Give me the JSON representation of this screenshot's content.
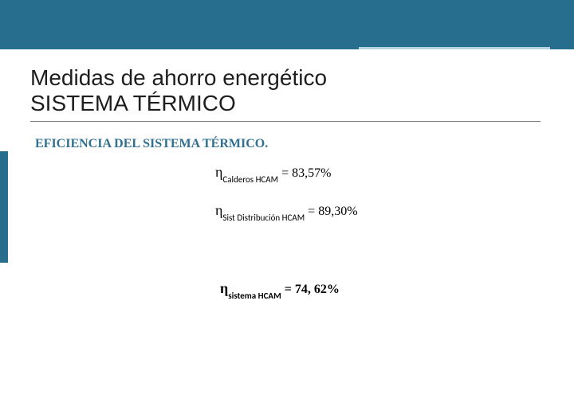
{
  "header": {
    "band_color": "#276e8e",
    "accent_color": "#b6d2de"
  },
  "title": {
    "line1": "Medidas de ahorro energético",
    "line2": "SISTEMA TÉRMICO"
  },
  "subheading": "EFICIENCIA DEL SISTEMA TÉRMICO.",
  "equations": {
    "eq1": {
      "symbol": "η",
      "subscript": "Calderos HCAM",
      "value": "83,57%",
      "bold": false
    },
    "eq2": {
      "symbol": "η",
      "subscript": "Sist Distribución HCAM",
      "value": "89,30%",
      "bold": false
    },
    "eq3": {
      "symbol": "η",
      "subscript": "sistema HCAM",
      "value": "74, 62%",
      "bold": true
    }
  },
  "styling": {
    "title_fontsize": 28,
    "subheading_color": "#31708f",
    "subheading_fontsize": 16,
    "eq_eta_fontsize": 18,
    "eq_sub_fontsize": 11,
    "eq_rhs_fontsize": 16,
    "background": "#ffffff"
  }
}
